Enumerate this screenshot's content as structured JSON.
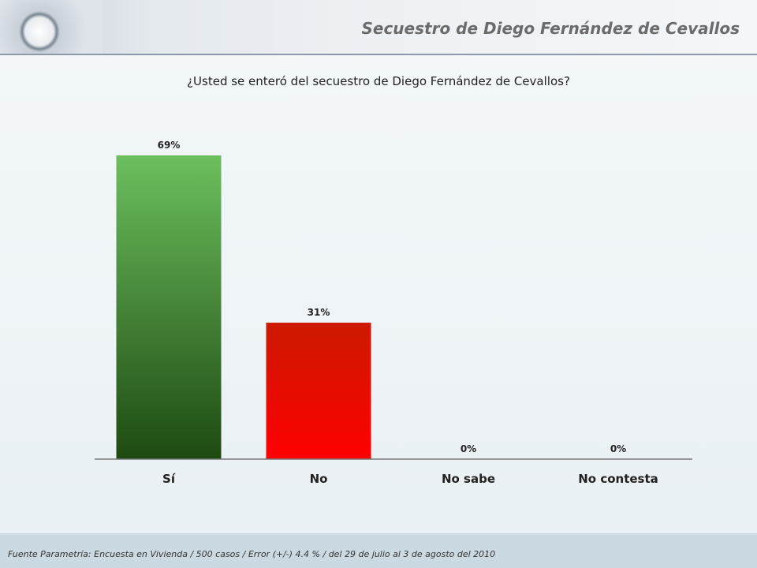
{
  "header": {
    "title": "Secuestro de Diego Fernández de Cevallos"
  },
  "footer": {
    "source": "Fuente Parametría: Encuesta en Vivienda / 500 casos / Error (+/-) 4.4 % / del 29 de julio al 3 de agosto del 2010"
  },
  "chart_data": {
    "type": "bar",
    "title": "¿Usted se enteró del secuestro de Diego Fernández de Cevallos?",
    "categories": [
      "Sí",
      "No",
      "No sabe",
      "No contesta"
    ],
    "values": [
      69,
      31,
      0,
      0
    ],
    "data_labels": [
      "69%",
      "31%",
      "0%",
      "0%"
    ],
    "colors": [
      [
        "#6cbf5e",
        "#1e4a12"
      ],
      [
        "#cc1a00",
        "#ff0000"
      ],
      [
        "#999999",
        "#999999"
      ],
      [
        "#999999",
        "#999999"
      ]
    ],
    "xlabel": "",
    "ylabel": "",
    "ylim": [
      0,
      69
    ],
    "grid": false,
    "legend": "none"
  }
}
